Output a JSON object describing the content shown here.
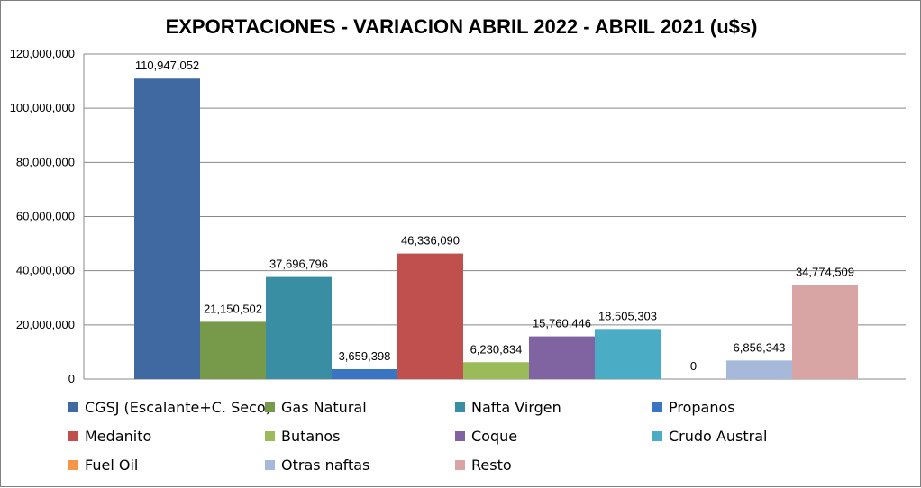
{
  "chart_data": {
    "type": "bar",
    "title": "EXPORTACIONES - VARIACION ABRIL 2022 - ABRIL 2021 (u$s)",
    "xlabel": "",
    "ylabel": "",
    "ylim": [
      0,
      120000000
    ],
    "yticks": [
      0,
      20000000,
      40000000,
      60000000,
      80000000,
      100000000,
      120000000
    ],
    "ytick_labels": [
      "0",
      "20,000,000",
      "40,000,000",
      "60,000,000",
      "80,000,000",
      "100,000,000",
      "120,000,000"
    ],
    "grid": true,
    "legend_position": "bottom",
    "series": [
      {
        "name": "CGSJ (Escalante+C. Seco)",
        "value": 110947052,
        "label": "110,947,052",
        "color": "#4169a1"
      },
      {
        "name": "Gas Natural",
        "value": 21150502,
        "label": "21,150,502",
        "color": "#77994a"
      },
      {
        "name": "Nafta Virgen",
        "value": 37696796,
        "label": "37,696,796",
        "color": "#3a8ea3"
      },
      {
        "name": "Propanos",
        "value": 3659398,
        "label": "3,659,398",
        "color": "#3a75c4"
      },
      {
        "name": "Medanito",
        "value": 46336090,
        "label": "46,336,090",
        "color": "#c0504d"
      },
      {
        "name": "Butanos",
        "value": 6230834,
        "label": "6,230,834",
        "color": "#9bbb59"
      },
      {
        "name": "Coque",
        "value": 15760446,
        "label": "15,760,446",
        "color": "#8064a2"
      },
      {
        "name": "Crudo Austral",
        "value": 18505303,
        "label": "18,505,303",
        "color": "#4bacc6"
      },
      {
        "name": "Fuel Oil",
        "value": 0,
        "label": "0",
        "color": "#f79646"
      },
      {
        "name": "Otras naftas",
        "value": 6856343,
        "label": "6,856,343",
        "color": "#a6b9db"
      },
      {
        "name": "Resto",
        "value": 34774509,
        "label": "34,774,509",
        "color": "#d9a5a4"
      }
    ]
  }
}
